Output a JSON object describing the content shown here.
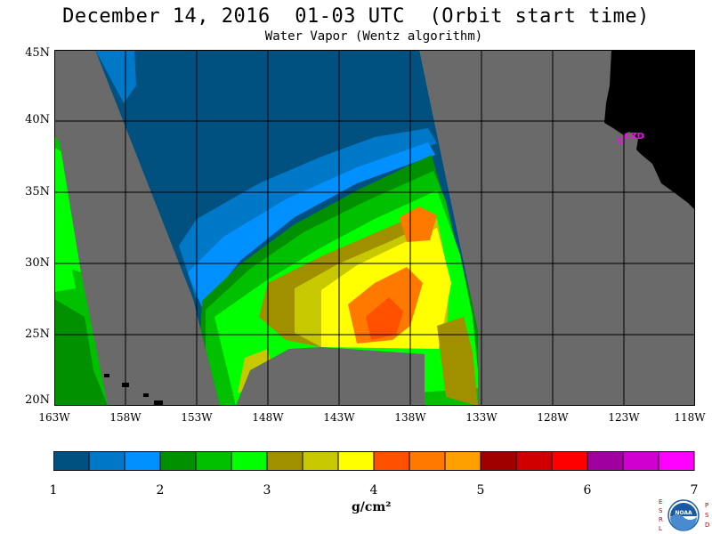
{
  "header": {
    "title": "December 14, 2016  01-03 UTC  (Orbit start time)",
    "subtitle": "Water Vapor (Wentz algorithm)"
  },
  "map": {
    "latitude_labels": [
      "45N",
      "40N",
      "35N",
      "30N",
      "25N",
      "20N"
    ],
    "longitude_labels": [
      "163W",
      "158W",
      "153W",
      "148W",
      "143W",
      "138W",
      "133W",
      "128W",
      "123W",
      "118W"
    ],
    "station_label": "CZD",
    "colors": {
      "no_data": "#6a6a6a",
      "land": "#000000",
      "gridline": "#000000",
      "station": "#ff00ff"
    }
  },
  "colorbar": {
    "tick_labels": [
      "1",
      "2",
      "3",
      "4",
      "5",
      "6",
      "7"
    ],
    "units": "g/cm²",
    "colors": [
      "#005080",
      "#0078c8",
      "#0090ff",
      "#009000",
      "#00c000",
      "#00ff00",
      "#a09000",
      "#c8c800",
      "#ffff00",
      "#ff5000",
      "#ff7800",
      "#ffa000",
      "#a00000",
      "#d00000",
      "#ff0000",
      "#a000a0",
      "#d000d0",
      "#ff00ff"
    ]
  },
  "logo": {
    "left_letters": "ESRL",
    "right_letters": "PSD",
    "center_text": "NOAA"
  }
}
